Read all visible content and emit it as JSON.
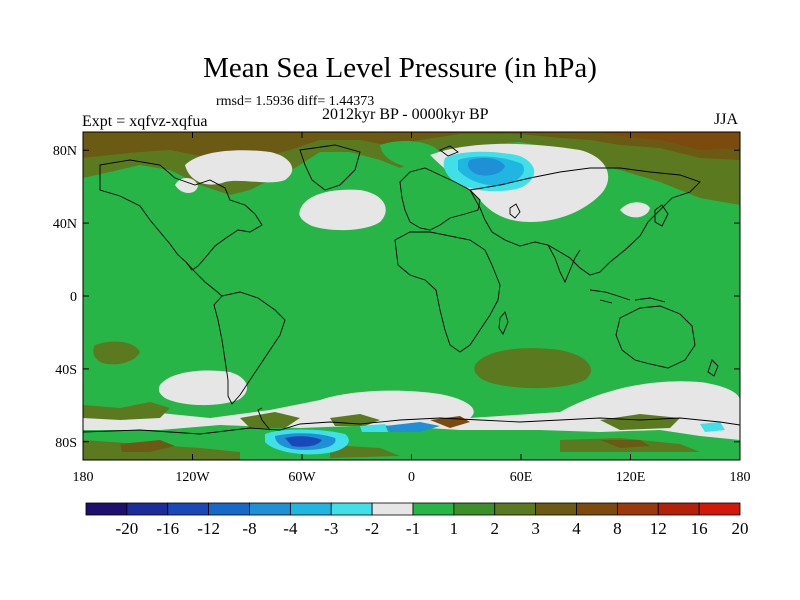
{
  "title": "Mean Sea Level Pressure (in hPa)",
  "stats": "rmsd= 1.5936 diff= 1.44373",
  "subtitle": "2012kyr BP - 0000kyr BP",
  "experiment": "Expt = xqfvz-xqfua",
  "season": "JJA",
  "lat_ticks": [
    "80N",
    "40N",
    "0",
    "40S",
    "80S"
  ],
  "lon_ticks": [
    "180",
    "120W",
    "60W",
    "0",
    "60E",
    "120E",
    "180"
  ],
  "colorbar": {
    "colors": [
      "#1e0f6e",
      "#1a2d9a",
      "#1a48b8",
      "#1769c9",
      "#1f8fd6",
      "#20b6e2",
      "#3fe0e8",
      "#e6e6e6",
      "#27b548",
      "#3d8f2a",
      "#5b7a1f",
      "#6b5a14",
      "#7d4a0e",
      "#9a3a0c",
      "#b32208",
      "#d41808"
    ],
    "labels": [
      "-20",
      "-16",
      "-12",
      "-8",
      "-4",
      "-3",
      "-2",
      "-1",
      "1",
      "2",
      "3",
      "4",
      "8",
      "12",
      "16",
      "20"
    ]
  }
}
